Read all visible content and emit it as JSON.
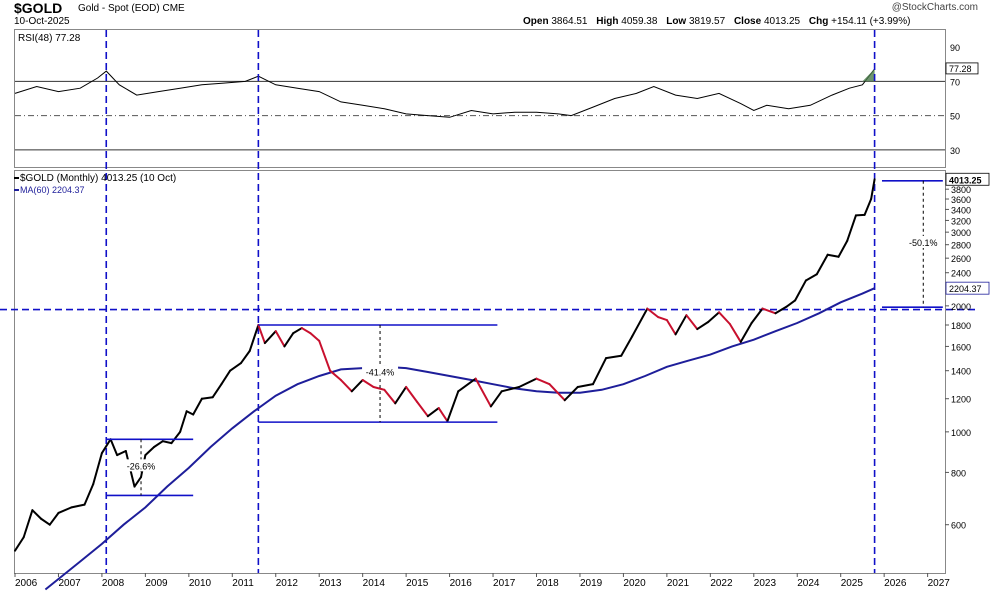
{
  "header": {
    "symbol": "$GOLD",
    "description": "Gold - Spot (EOD)  CME",
    "date": "10-Oct-2025",
    "brand": "@StockCharts.com",
    "open_label": "Open",
    "open": "3864.51",
    "high_label": "High",
    "high": "4059.38",
    "low_label": "Low",
    "low": "3819.57",
    "close_label": "Close",
    "close": "4013.25",
    "chg_label": "Chg",
    "chg": "+154.11 (+3.99%)"
  },
  "chart_data": [
    {
      "type": "line",
      "title": "RSI(48) 77.28",
      "series": [
        {
          "name": "RSI(48)",
          "color": "#000000",
          "points": [
            [
              2006.0,
              63
            ],
            [
              2006.5,
              67
            ],
            [
              2007.0,
              64
            ],
            [
              2007.5,
              66
            ],
            [
              2007.9,
              72
            ],
            [
              2008.1,
              76
            ],
            [
              2008.4,
              68
            ],
            [
              2008.8,
              62
            ],
            [
              2009.3,
              64
            ],
            [
              2009.8,
              66
            ],
            [
              2010.3,
              68
            ],
            [
              2010.8,
              69
            ],
            [
              2011.3,
              70
            ],
            [
              2011.6,
              73
            ],
            [
              2012.0,
              68
            ],
            [
              2012.5,
              66
            ],
            [
              2013.0,
              64
            ],
            [
              2013.5,
              58
            ],
            [
              2014.0,
              56
            ],
            [
              2014.5,
              54
            ],
            [
              2015.0,
              51
            ],
            [
              2015.5,
              50
            ],
            [
              2016.0,
              49
            ],
            [
              2016.5,
              53
            ],
            [
              2017.0,
              51
            ],
            [
              2017.5,
              52
            ],
            [
              2018.0,
              52
            ],
            [
              2018.5,
              51
            ],
            [
              2018.8,
              50
            ],
            [
              2019.3,
              55
            ],
            [
              2019.8,
              60
            ],
            [
              2020.3,
              63
            ],
            [
              2020.7,
              67
            ],
            [
              2021.2,
              62
            ],
            [
              2021.7,
              60
            ],
            [
              2022.2,
              63
            ],
            [
              2022.7,
              57
            ],
            [
              2023.0,
              53
            ],
            [
              2023.3,
              56
            ],
            [
              2023.8,
              54
            ],
            [
              2024.3,
              56
            ],
            [
              2024.8,
              62
            ],
            [
              2025.2,
              66
            ],
            [
              2025.5,
              68
            ],
            [
              2025.78,
              77.28
            ]
          ]
        }
      ],
      "hlines": [
        70,
        50,
        30
      ],
      "ylim": [
        20,
        100
      ],
      "yticks": [
        90,
        70,
        50,
        30
      ],
      "value_label": "77.28",
      "xlim": [
        2006.0,
        2027.4
      ]
    },
    {
      "type": "line",
      "title": "$GOLD (Monthly) 4013.25 (10 Oct)",
      "yscale": "log",
      "series": [
        {
          "name": "$GOLD (Monthly)",
          "color": "#000000",
          "points": [
            [
              2006.0,
              520
            ],
            [
              2006.2,
              560
            ],
            [
              2006.4,
              650
            ],
            [
              2006.6,
              620
            ],
            [
              2006.8,
              600
            ],
            [
              2007.0,
              640
            ],
            [
              2007.3,
              660
            ],
            [
              2007.6,
              670
            ],
            [
              2007.8,
              750
            ],
            [
              2008.0,
              890
            ],
            [
              2008.2,
              960
            ],
            [
              2008.35,
              880
            ],
            [
              2008.55,
              900
            ],
            [
              2008.75,
              740
            ],
            [
              2008.9,
              780
            ],
            [
              2009.0,
              880
            ],
            [
              2009.2,
              920
            ],
            [
              2009.4,
              950
            ],
            [
              2009.6,
              940
            ],
            [
              2009.8,
              1000
            ],
            [
              2009.95,
              1120
            ],
            [
              2010.1,
              1100
            ],
            [
              2010.3,
              1200
            ],
            [
              2010.55,
              1210
            ],
            [
              2010.75,
              1300
            ],
            [
              2010.95,
              1400
            ],
            [
              2011.2,
              1460
            ],
            [
              2011.4,
              1560
            ],
            [
              2011.6,
              1800
            ],
            [
              2011.75,
              1630
            ],
            [
              2012.0,
              1740
            ],
            [
              2012.2,
              1600
            ],
            [
              2012.4,
              1720
            ],
            [
              2012.6,
              1770
            ],
            [
              2012.8,
              1720
            ],
            [
              2013.0,
              1650
            ],
            [
              2013.25,
              1400
            ],
            [
              2013.5,
              1330
            ],
            [
              2013.75,
              1250
            ],
            [
              2014.0,
              1330
            ],
            [
              2014.25,
              1280
            ],
            [
              2014.5,
              1260
            ],
            [
              2014.75,
              1170
            ],
            [
              2015.0,
              1280
            ],
            [
              2015.25,
              1180
            ],
            [
              2015.5,
              1090
            ],
            [
              2015.75,
              1140
            ],
            [
              2015.95,
              1060
            ],
            [
              2016.2,
              1250
            ],
            [
              2016.6,
              1340
            ],
            [
              2016.95,
              1150
            ],
            [
              2017.2,
              1250
            ],
            [
              2017.6,
              1280
            ],
            [
              2018.0,
              1340
            ],
            [
              2018.3,
              1300
            ],
            [
              2018.65,
              1190
            ],
            [
              2018.95,
              1280
            ],
            [
              2019.3,
              1300
            ],
            [
              2019.6,
              1500
            ],
            [
              2019.95,
              1520
            ],
            [
              2020.2,
              1690
            ],
            [
              2020.55,
              1970
            ],
            [
              2020.8,
              1880
            ],
            [
              2021.0,
              1850
            ],
            [
              2021.2,
              1710
            ],
            [
              2021.45,
              1900
            ],
            [
              2021.7,
              1760
            ],
            [
              2021.95,
              1830
            ],
            [
              2022.2,
              1930
            ],
            [
              2022.45,
              1810
            ],
            [
              2022.7,
              1640
            ],
            [
              2022.95,
              1820
            ],
            [
              2023.2,
              1970
            ],
            [
              2023.5,
              1920
            ],
            [
              2023.75,
              1990
            ],
            [
              2023.95,
              2060
            ],
            [
              2024.2,
              2300
            ],
            [
              2024.45,
              2380
            ],
            [
              2024.7,
              2650
            ],
            [
              2024.95,
              2620
            ],
            [
              2025.15,
              2860
            ],
            [
              2025.35,
              3290
            ],
            [
              2025.55,
              3300
            ],
            [
              2025.7,
              3600
            ],
            [
              2025.78,
              4013.25
            ]
          ]
        },
        {
          "name": "MA(60) 2204.37",
          "color": "#1e1e9a",
          "points": [
            [
              2006.7,
              420
            ],
            [
              2007.5,
              490
            ],
            [
              2008.0,
              540
            ],
            [
              2008.5,
              600
            ],
            [
              2009.0,
              660
            ],
            [
              2009.5,
              740
            ],
            [
              2010.0,
              820
            ],
            [
              2010.5,
              920
            ],
            [
              2011.0,
              1020
            ],
            [
              2011.5,
              1120
            ],
            [
              2012.0,
              1220
            ],
            [
              2012.5,
              1300
            ],
            [
              2013.0,
              1360
            ],
            [
              2013.5,
              1410
            ],
            [
              2014.0,
              1420
            ],
            [
              2014.5,
              1430
            ],
            [
              2015.0,
              1420
            ],
            [
              2015.5,
              1390
            ],
            [
              2016.0,
              1360
            ],
            [
              2016.5,
              1330
            ],
            [
              2017.0,
              1300
            ],
            [
              2017.5,
              1270
            ],
            [
              2018.0,
              1250
            ],
            [
              2018.5,
              1240
            ],
            [
              2019.0,
              1240
            ],
            [
              2019.5,
              1260
            ],
            [
              2020.0,
              1300
            ],
            [
              2020.5,
              1360
            ],
            [
              2021.0,
              1430
            ],
            [
              2021.5,
              1480
            ],
            [
              2022.0,
              1530
            ],
            [
              2022.5,
              1600
            ],
            [
              2023.0,
              1660
            ],
            [
              2023.5,
              1740
            ],
            [
              2024.0,
              1820
            ],
            [
              2024.5,
              1920
            ],
            [
              2025.0,
              2040
            ],
            [
              2025.5,
              2140
            ],
            [
              2025.78,
              2204.37
            ]
          ]
        }
      ],
      "ylim": [
        460,
        4200
      ],
      "yticks": [
        3800,
        3600,
        3400,
        3200,
        3000,
        2800,
        2600,
        2400,
        2000,
        1800,
        1600,
        1400,
        1200,
        1000,
        800,
        600
      ],
      "last_labels": [
        "4013.25",
        "2204.37"
      ],
      "xlim": [
        2006.0,
        2027.4
      ],
      "xticks": [
        "2006",
        "2007",
        "2008",
        "2009",
        "2010",
        "2011",
        "2012",
        "2013",
        "2014",
        "2015",
        "2016",
        "2017",
        "2018",
        "2019",
        "2020",
        "2021",
        "2022",
        "2023",
        "2024",
        "2025",
        "2026",
        "2027"
      ],
      "annotations": [
        {
          "text": "-26.6%",
          "x": 2008.9,
          "from": 960,
          "to": 705
        },
        {
          "text": "-41.4%",
          "x": 2014.4,
          "from": 1800,
          "to": 1055
        },
        {
          "text": "-50.1%",
          "x": 2026.9,
          "from": 3980,
          "to": 1985
        }
      ],
      "hlines": [
        {
          "value": 1960,
          "style": "dashed"
        }
      ],
      "vlines": [
        2008.1,
        2011.6,
        2025.78
      ]
    }
  ]
}
